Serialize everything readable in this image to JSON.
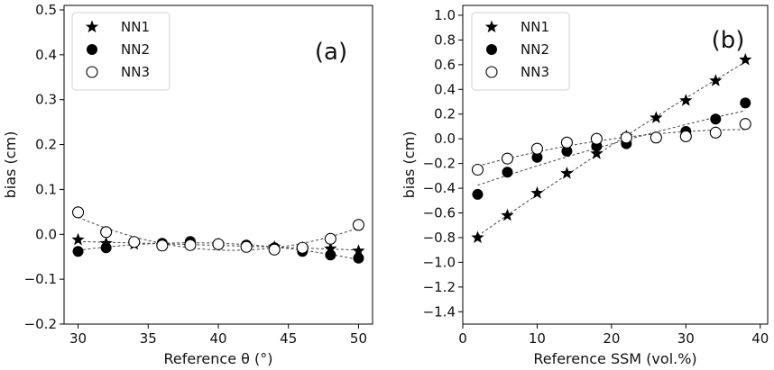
{
  "chart_data": [
    {
      "type": "scatter",
      "panel_label": "(a)",
      "xlabel": "Reference θ (°)",
      "ylabel": "bias (cm)",
      "xlim": [
        29,
        51
      ],
      "ylim": [
        -0.2,
        0.51
      ],
      "xticks": [
        30,
        35,
        40,
        45,
        50
      ],
      "xtick_labels": [
        "30",
        "35",
        "40",
        "45",
        "50"
      ],
      "yticks": [
        -0.2,
        -0.1,
        0.0,
        0.1,
        0.2,
        0.3,
        0.4,
        0.5
      ],
      "ytick_labels": [
        "−0.2",
        "−0.1",
        "0.0",
        "0.1",
        "0.2",
        "0.3",
        "0.4",
        "0.5"
      ],
      "legend_position": "top-left",
      "x": [
        30,
        32,
        34,
        36,
        38,
        40,
        42,
        44,
        46,
        48,
        50
      ],
      "series": [
        {
          "name": "NN1",
          "marker": "star",
          "values": [
            -0.012,
            -0.02,
            -0.022,
            -0.024,
            -0.022,
            -0.022,
            -0.026,
            -0.028,
            -0.03,
            -0.032,
            -0.037
          ]
        },
        {
          "name": "NN2",
          "marker": "filled-circle",
          "values": [
            -0.038,
            -0.03,
            -0.018,
            -0.02,
            -0.016,
            -0.021,
            -0.024,
            -0.03,
            -0.038,
            -0.046,
            -0.053
          ]
        },
        {
          "name": "NN3",
          "marker": "open-circle",
          "values": [
            0.049,
            0.005,
            -0.017,
            -0.025,
            -0.024,
            -0.022,
            -0.028,
            -0.034,
            -0.03,
            -0.01,
            0.021
          ]
        }
      ]
    },
    {
      "type": "scatter",
      "panel_label": "(b)",
      "xlabel": "Reference SSM (vol.%)",
      "ylabel": "bias (cm)",
      "xlim": [
        0,
        41
      ],
      "ylim": [
        -1.5,
        1.08
      ],
      "xticks": [
        0,
        10,
        20,
        30,
        40
      ],
      "xtick_labels": [
        "0",
        "10",
        "20",
        "30",
        "40"
      ],
      "yticks": [
        -1.4,
        -1.2,
        -1.0,
        -0.8,
        -0.6,
        -0.4,
        -0.2,
        0.0,
        0.2,
        0.4,
        0.6,
        0.8,
        1.0
      ],
      "ytick_labels": [
        "−1.4",
        "−1.2",
        "−1.0",
        "−0.8",
        "−0.6",
        "−0.4",
        "−0.2",
        "0.0",
        "0.2",
        "0.4",
        "0.6",
        "0.8",
        "1.0"
      ],
      "legend_position": "top-left",
      "x": [
        2,
        6,
        10,
        14,
        18,
        22,
        26,
        30,
        34,
        38
      ],
      "series": [
        {
          "name": "NN1",
          "marker": "star",
          "values": [
            -0.8,
            -0.62,
            -0.44,
            -0.28,
            -0.12,
            0.02,
            0.17,
            0.31,
            0.47,
            0.64
          ]
        },
        {
          "name": "NN2",
          "marker": "filled-circle",
          "values": [
            -0.45,
            -0.27,
            -0.15,
            -0.1,
            -0.06,
            -0.04,
            0.01,
            0.06,
            0.16,
            0.29
          ]
        },
        {
          "name": "NN3",
          "marker": "open-circle",
          "values": [
            -0.25,
            -0.16,
            -0.08,
            -0.03,
            0.0,
            0.01,
            0.01,
            0.02,
            0.05,
            0.12
          ]
        }
      ]
    }
  ]
}
